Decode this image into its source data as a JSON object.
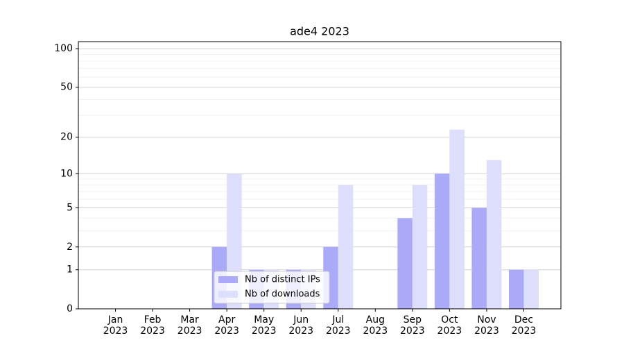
{
  "chart_data": {
    "type": "bar",
    "title": "ade4 2023",
    "categories": [
      "Jan 2023",
      "Feb 2023",
      "Mar 2023",
      "Apr 2023",
      "May 2023",
      "Jun 2023",
      "Jul 2023",
      "Aug 2023",
      "Sep 2023",
      "Oct 2023",
      "Nov 2023",
      "Dec 2023"
    ],
    "series": [
      {
        "name": "Nb of distinct IPs",
        "color": "#aaaaf8",
        "values": [
          0,
          0,
          0,
          2,
          1,
          1,
          2,
          0,
          4,
          10,
          5,
          1
        ]
      },
      {
        "name": "Nb of downloads",
        "color": "#ddddfc",
        "values": [
          0,
          0,
          0,
          10,
          1,
          1,
          8,
          0,
          8,
          23,
          13,
          1
        ]
      }
    ],
    "yscale": "log1p",
    "ylim": [
      0,
      113.5
    ],
    "yticks": [
      0,
      1,
      2,
      5,
      10,
      20,
      50,
      100
    ],
    "minor_yticks": [
      3,
      4,
      6,
      7,
      8,
      9,
      30,
      40,
      60,
      70,
      80,
      90
    ],
    "grid": true,
    "legend": "lower center"
  }
}
